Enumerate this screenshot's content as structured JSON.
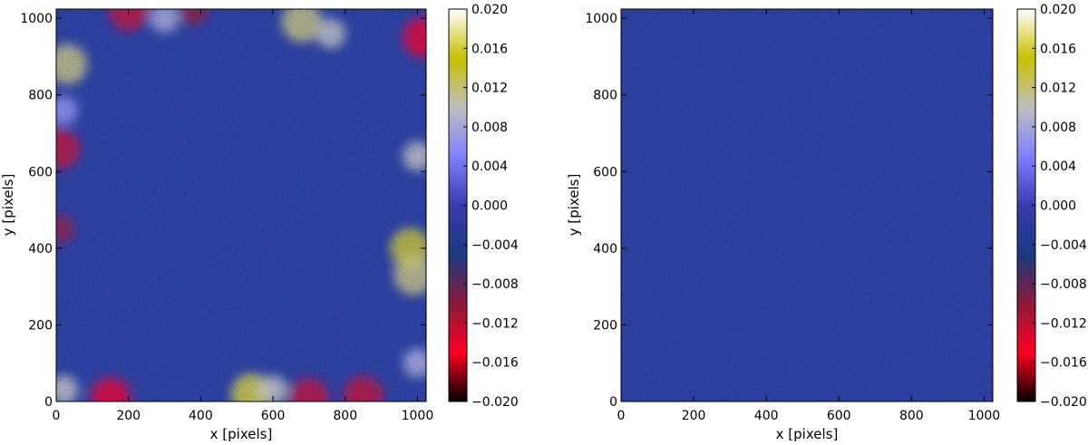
{
  "chart_data": [
    {
      "type": "heatmap",
      "panel": "left",
      "xlabel": "x [pixels]",
      "ylabel": "y [pixels]",
      "xlim": [
        0,
        1024
      ],
      "ylim": [
        0,
        1024
      ],
      "x_ticks": [
        0,
        200,
        400,
        600,
        800,
        1000
      ],
      "y_ticks": [
        0,
        200,
        400,
        600,
        800,
        1000
      ],
      "colorbar": {
        "range": [
          -0.02,
          0.02
        ],
        "ticks": [
          "0.020",
          "0.016",
          "0.012",
          "0.008",
          "0.004",
          "0.000",
          "−0.004",
          "−0.008",
          "−0.012",
          "−0.016",
          "−0.020"
        ],
        "colormap": [
          "#000000",
          "#ff0022",
          "#8a1a3a",
          "#1a3a80",
          "#3a3ab0",
          "#8080ff",
          "#bfbfbf",
          "#c8c000",
          "#ffffff"
        ]
      },
      "background_value": -0.003,
      "texture": "noisy granular residual map",
      "features": [
        {
          "x": 300,
          "y": 1000,
          "value": 0.008
        },
        {
          "x": 680,
          "y": 990,
          "value": 0.012
        },
        {
          "x": 760,
          "y": 960,
          "value": 0.01
        },
        {
          "x": 30,
          "y": 880,
          "value": 0.012
        },
        {
          "x": 20,
          "y": 760,
          "value": 0.006
        },
        {
          "x": 1000,
          "y": 640,
          "value": 0.01
        },
        {
          "x": 980,
          "y": 400,
          "value": 0.014
        },
        {
          "x": 990,
          "y": 330,
          "value": 0.012
        },
        {
          "x": 540,
          "y": 20,
          "value": 0.016
        },
        {
          "x": 600,
          "y": 30,
          "value": 0.01
        },
        {
          "x": 20,
          "y": 30,
          "value": 0.01
        },
        {
          "x": 1000,
          "y": 100,
          "value": 0.008
        },
        {
          "x": 150,
          "y": 10,
          "value": -0.014
        },
        {
          "x": 700,
          "y": 10,
          "value": -0.012
        },
        {
          "x": 850,
          "y": 15,
          "value": -0.012
        },
        {
          "x": 10,
          "y": 660,
          "value": -0.012
        },
        {
          "x": 10,
          "y": 450,
          "value": -0.01
        },
        {
          "x": 1015,
          "y": 950,
          "value": -0.014
        },
        {
          "x": 200,
          "y": 1020,
          "value": -0.012
        },
        {
          "x": 380,
          "y": 1020,
          "value": -0.01
        }
      ]
    },
    {
      "type": "heatmap",
      "panel": "right",
      "xlabel": "x [pixels]",
      "ylabel": "y [pixels]",
      "xlim": [
        0,
        1024
      ],
      "ylim": [
        0,
        1024
      ],
      "x_ticks": [
        0,
        200,
        400,
        600,
        800,
        1000
      ],
      "y_ticks": [
        0,
        200,
        400,
        600,
        800,
        1000
      ],
      "colorbar": {
        "range": [
          -0.02,
          0.02
        ],
        "ticks": [
          "0.020",
          "0.016",
          "0.012",
          "0.008",
          "0.004",
          "0.000",
          "−0.004",
          "−0.008",
          "−0.012",
          "−0.016",
          "−0.020"
        ],
        "colormap": [
          "#000000",
          "#ff0022",
          "#8a1a3a",
          "#1a3a80",
          "#3a3ab0",
          "#8080ff",
          "#bfbfbf",
          "#c8c000",
          "#ffffff"
        ]
      },
      "background_value": -0.003,
      "texture": "noisy granular residual map",
      "features": []
    }
  ]
}
